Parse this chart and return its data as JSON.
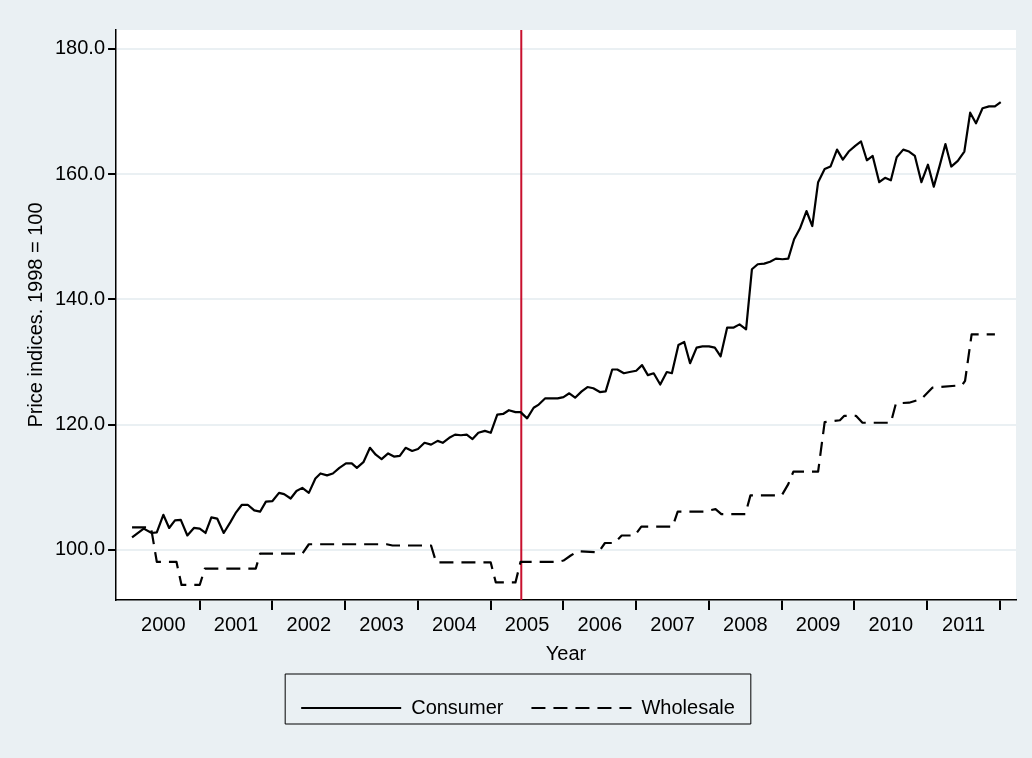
{
  "chart_data": {
    "type": "line",
    "xlabel": "Year",
    "ylabel": "Price indices. 1998 = 100",
    "xlim": [
      1999.85,
      2012.22
    ],
    "ylim": [
      92,
      183
    ],
    "xticks": [
      {
        "value": 2000.5,
        "label": "2000"
      },
      {
        "value": 2001,
        "label": null
      },
      {
        "value": 2001.5,
        "label": "2001"
      },
      {
        "value": 2002,
        "label": null
      },
      {
        "value": 2002.5,
        "label": "2002"
      },
      {
        "value": 2003,
        "label": null
      },
      {
        "value": 2003.5,
        "label": "2003"
      },
      {
        "value": 2004,
        "label": null
      },
      {
        "value": 2004.5,
        "label": "2004"
      },
      {
        "value": 2005,
        "label": null
      },
      {
        "value": 2005.5,
        "label": "2005"
      },
      {
        "value": 2006,
        "label": null
      },
      {
        "value": 2006.5,
        "label": "2006"
      },
      {
        "value": 2007,
        "label": null
      },
      {
        "value": 2007.5,
        "label": "2007"
      },
      {
        "value": 2008,
        "label": null
      },
      {
        "value": 2008.5,
        "label": "2008"
      },
      {
        "value": 2009,
        "label": null
      },
      {
        "value": 2009.5,
        "label": "2009"
      },
      {
        "value": 2010,
        "label": null
      },
      {
        "value": 2010.5,
        "label": "2010"
      },
      {
        "value": 2011,
        "label": null
      },
      {
        "value": 2011.5,
        "label": "2011"
      },
      {
        "value": 2012,
        "label": null
      }
    ],
    "yticks": [
      {
        "value": 100,
        "label": "100.0"
      },
      {
        "value": 120,
        "label": "120.0"
      },
      {
        "value": 140,
        "label": "140.0"
      },
      {
        "value": 160,
        "label": "160.0"
      },
      {
        "value": 180,
        "label": "180.0"
      }
    ],
    "grid": "y",
    "legend": "bottom",
    "marker": "none",
    "ref_lines": [
      {
        "axis": "x",
        "value": 2005.42,
        "color": "#c8102e"
      }
    ],
    "series": [
      {
        "name": "Consumer",
        "color": "#000000",
        "line_style": "solid",
        "x": [
          2000.07,
          2000.23,
          2000.34,
          2000.41,
          2000.5,
          2000.58,
          2000.66,
          2000.74,
          2000.83,
          2000.92,
          2001.0,
          2001.08,
          2001.16,
          2001.24,
          2001.33,
          2001.42,
          2001.5,
          2001.58,
          2001.66,
          2001.75,
          2001.83,
          2001.91,
          2002.0,
          2002.09,
          2002.16,
          2002.25,
          2002.33,
          2002.41,
          2002.5,
          2002.59,
          2002.66,
          2002.75,
          2002.83,
          2002.92,
          2003.01,
          2003.09,
          2003.16,
          2003.25,
          2003.34,
          2003.42,
          2003.5,
          2003.59,
          2003.67,
          2003.75,
          2003.83,
          2003.92,
          2004.0,
          2004.09,
          2004.18,
          2004.27,
          2004.34,
          2004.43,
          2004.51,
          2004.59,
          2004.67,
          2004.75,
          2004.83,
          2004.92,
          2005.0,
          2005.09,
          2005.17,
          2005.25,
          2005.34,
          2005.41,
          2005.5,
          2005.59,
          2005.66,
          2005.75,
          2005.84,
          2005.92,
          2006.0,
          2006.08,
          2006.16,
          2006.25,
          2006.33,
          2006.41,
          2006.5,
          2006.58,
          2006.67,
          2006.74,
          2006.83,
          2006.91,
          2007.0,
          2007.08,
          2007.16,
          2007.24,
          2007.33,
          2007.42,
          2007.49,
          2007.58,
          2007.66,
          2007.74,
          2007.83,
          2007.91,
          2008.0,
          2008.08,
          2008.16,
          2008.25,
          2008.34,
          2008.42,
          2008.51,
          2008.59,
          2008.67,
          2008.76,
          2008.84,
          2008.92,
          2009.01,
          2009.09,
          2009.17,
          2009.25,
          2009.34,
          2009.42,
          2009.5,
          2009.59,
          2009.67,
          2009.76,
          2009.84,
          2009.92,
          2010.01,
          2010.09,
          2010.17,
          2010.25,
          2010.34,
          2010.42,
          2010.5,
          2010.58,
          2010.67,
          2010.75,
          2010.83,
          2010.92,
          2011.01,
          2011.09,
          2011.17,
          2011.25,
          2011.33,
          2011.42,
          2011.51,
          2011.59,
          2011.67,
          2011.76,
          2011.85,
          2011.93,
          2012.01
        ],
        "values": [
          102.0,
          103.4,
          102.7,
          102.8,
          105.6,
          103.5,
          104.7,
          104.8,
          102.3,
          103.5,
          103.4,
          102.7,
          105.2,
          105.0,
          102.7,
          104.4,
          106.0,
          107.2,
          107.2,
          106.3,
          106.1,
          107.7,
          107.8,
          109.1,
          108.9,
          108.2,
          109.4,
          109.9,
          109.1,
          111.4,
          112.2,
          111.9,
          112.2,
          113.1,
          113.8,
          113.8,
          113.1,
          114.0,
          116.3,
          115.2,
          114.5,
          115.4,
          114.9,
          115.0,
          116.3,
          115.8,
          116.1,
          117.1,
          116.8,
          117.4,
          117.1,
          117.9,
          118.4,
          118.3,
          118.4,
          117.7,
          118.7,
          119.0,
          118.7,
          121.6,
          121.7,
          122.3,
          122.0,
          122.0,
          121.0,
          122.7,
          123.2,
          124.2,
          124.2,
          124.2,
          124.4,
          125.0,
          124.3,
          125.3,
          126.0,
          125.8,
          125.2,
          125.3,
          128.8,
          128.8,
          128.2,
          128.4,
          128.6,
          129.5,
          127.9,
          128.2,
          126.4,
          128.4,
          128.2,
          132.7,
          133.2,
          129.8,
          132.3,
          132.5,
          132.5,
          132.3,
          130.9,
          135.5,
          135.5,
          136.0,
          135.2,
          144.8,
          145.6,
          145.7,
          146.0,
          146.5,
          146.4,
          146.5,
          149.6,
          151.3,
          154.1,
          151.7,
          158.7,
          160.8,
          161.2,
          163.9,
          162.3,
          163.6,
          164.5,
          165.2,
          162.2,
          162.9,
          158.7,
          159.4,
          159.0,
          162.7,
          163.9,
          163.6,
          162.9,
          158.7,
          161.5,
          158.0,
          161.3,
          164.8,
          161.2,
          162.1,
          163.6,
          169.8,
          168.1,
          170.5,
          170.8,
          170.8,
          171.5
        ]
      },
      {
        "name": "Wholesale",
        "color": "#000000",
        "line_style": "dashed",
        "x": [
          2000.07,
          2000.33,
          2000.41,
          2000.68,
          2000.75,
          2001.0,
          2001.07,
          2001.77,
          2001.83,
          2002.41,
          2002.5,
          2003.57,
          2003.65,
          2004.18,
          2004.25,
          2005.0,
          2005.07,
          2005.34,
          2005.41,
          2005.93,
          2006.0,
          2006.1,
          2006.2,
          2006.48,
          2006.57,
          2006.7,
          2006.8,
          2006.98,
          2007.07,
          2007.5,
          2007.57,
          2007.93,
          2008.0,
          2008.09,
          2008.17,
          2008.5,
          2008.57,
          2009.0,
          2009.09,
          2009.16,
          2009.5,
          2009.59,
          2009.8,
          2009.86,
          2010.02,
          2010.11,
          2010.5,
          2010.57,
          2010.75,
          2010.92,
          2011.07,
          2011.48,
          2011.52,
          2011.61,
          2011.93
        ],
        "values": [
          103.6,
          103.6,
          98.1,
          98.1,
          94.4,
          94.4,
          97.0,
          97.0,
          99.4,
          99.4,
          100.9,
          100.9,
          100.7,
          100.7,
          98.0,
          98.0,
          94.8,
          94.8,
          98.1,
          98.1,
          98.3,
          99.1,
          99.8,
          99.6,
          101.1,
          101.1,
          102.3,
          102.3,
          103.7,
          103.7,
          106.1,
          106.1,
          106.3,
          106.5,
          105.7,
          105.7,
          108.7,
          108.7,
          110.5,
          112.5,
          112.5,
          120.4,
          120.7,
          121.4,
          121.4,
          120.3,
          120.3,
          123.4,
          123.5,
          124.1,
          125.9,
          126.3,
          127.0,
          134.4,
          134.4
        ]
      }
    ]
  }
}
